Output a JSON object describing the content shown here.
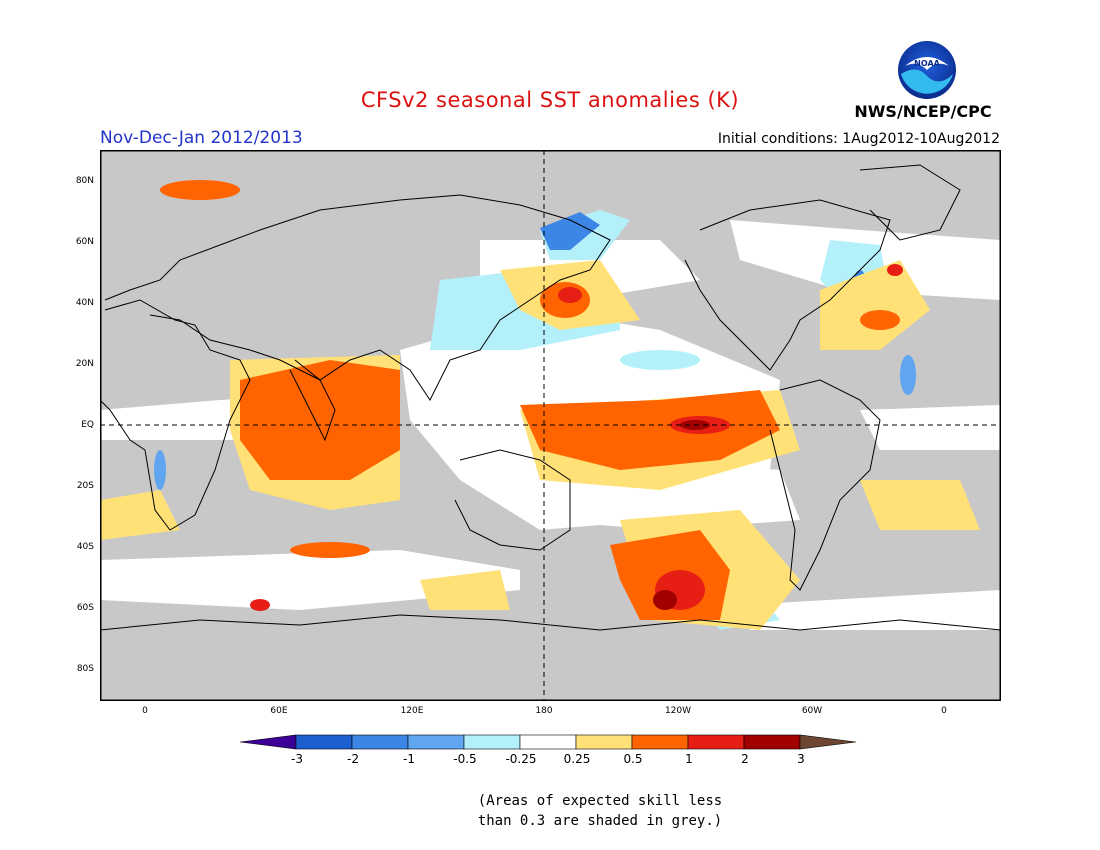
{
  "header": {
    "title": "CFSv2 seasonal SST anomalies (K)",
    "period": "Nov-Dec-Jan 2012/2013",
    "initial_conditions": "Initial conditions: 1Aug2012-10Aug2012",
    "agency": "NWS/NCEP/CPC",
    "logo_text": "NOAA"
  },
  "map": {
    "lat_labels": [
      "80N",
      "60N",
      "40N",
      "20N",
      "EQ",
      "20S",
      "40S",
      "60S",
      "80S"
    ],
    "lon_labels": [
      "0",
      "60E",
      "120E",
      "180",
      "120W",
      "60W",
      "0"
    ],
    "grey_color": "#c8c8c8",
    "projection": "cylindrical equidistant, 0 to 360+ longitude"
  },
  "legend": {
    "units": "K",
    "tick_labels": [
      "-3",
      "-2",
      "-1",
      "-0.5",
      "-0.25",
      "0.25",
      "0.5",
      "1",
      "2",
      "3"
    ],
    "colors": [
      "#3c0096",
      "#1e5fd0",
      "#3c87e6",
      "#5fa5f0",
      "#b4f0fa",
      "#ffffff",
      "#ffe178",
      "#ff6400",
      "#e61e14",
      "#a00000",
      "#6e4632"
    ]
  },
  "note": {
    "line1": "(Areas of expected skill less",
    "line2": "than 0.3 are shaded in grey.)"
  }
}
